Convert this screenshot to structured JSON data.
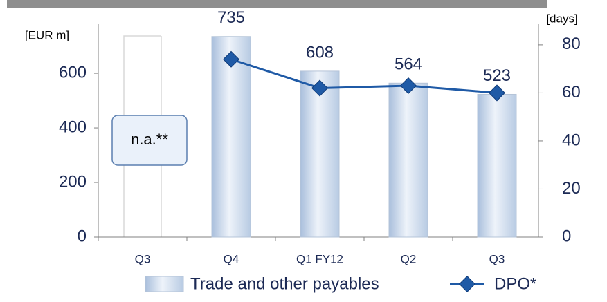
{
  "chart_data": {
    "type": "bar_line",
    "y_label": "[EUR m]",
    "y2_label": "[days]",
    "annotation": "n.a.**",
    "categories": [
      "Q3",
      "Q4",
      "Q1  FY12",
      "Q2",
      "Q3"
    ],
    "series": [
      {
        "name": "Trade and other payables",
        "color": "#c9d8ec",
        "values": [
          null,
          735,
          608,
          564,
          523
        ]
      },
      {
        "name": "DPO*",
        "color": "#1f5aa6",
        "axis": "y2",
        "values": [
          null,
          74,
          62,
          63,
          60
        ]
      }
    ],
    "ylim": [
      0,
      780
    ],
    "yticks": [
      0,
      200,
      400,
      600
    ],
    "y2lim": [
      0,
      88.6
    ],
    "y2ticks": [
      0,
      20,
      40,
      60,
      80
    ]
  }
}
